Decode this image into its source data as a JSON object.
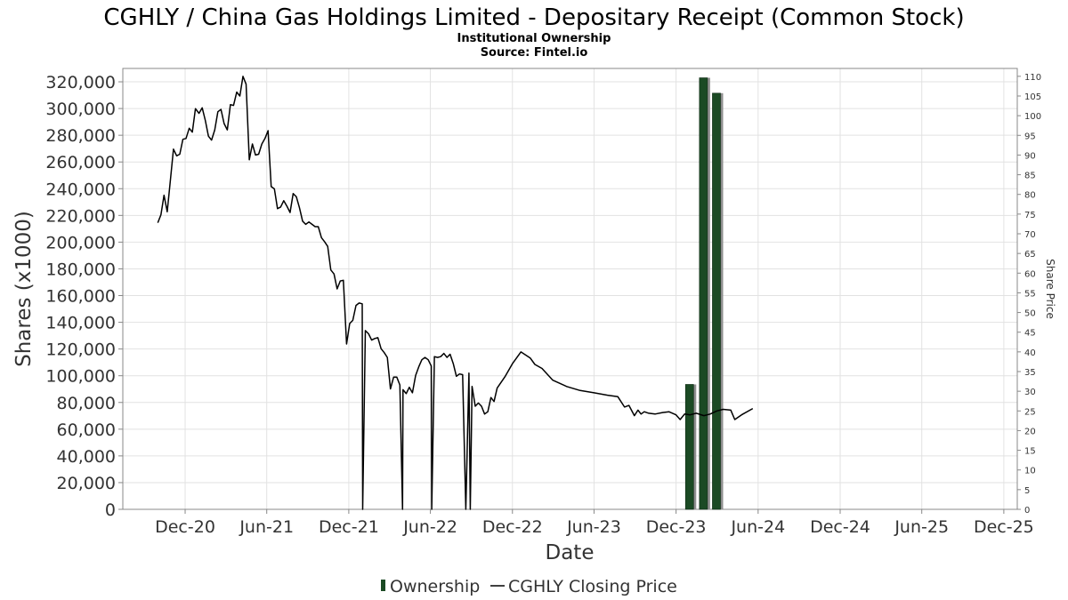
{
  "chart_data": {
    "type": "bar+line",
    "title": "CGHLY / China Gas Holdings Limited - Depositary Receipt (Common Stock)",
    "subtitle_lines": [
      "Institutional Ownership",
      "Source: Fintel.io"
    ],
    "xlabel": "Date",
    "ylabel_left": "Shares (x1000)",
    "ylabel_right": "Share Price",
    "ylim_left": [
      0,
      330000
    ],
    "ylim_right": [
      0,
      112
    ],
    "xlim": [
      "2020-07-15",
      "2025-12-31"
    ],
    "grid": true,
    "x_ticks": [
      {
        "label": "Dec-20",
        "date": "2020-12-01"
      },
      {
        "label": "Jun-21",
        "date": "2021-06-01"
      },
      {
        "label": "Dec-21",
        "date": "2021-12-01"
      },
      {
        "label": "Jun-22",
        "date": "2022-06-01"
      },
      {
        "label": "Dec-22",
        "date": "2022-12-01"
      },
      {
        "label": "Jun-23",
        "date": "2023-06-01"
      },
      {
        "label": "Dec-23",
        "date": "2023-12-01"
      },
      {
        "label": "Jun-24",
        "date": "2024-06-01"
      },
      {
        "label": "Dec-24",
        "date": "2024-12-01"
      },
      {
        "label": "Jun-25",
        "date": "2025-06-01"
      },
      {
        "label": "Dec-25",
        "date": "2025-12-01"
      }
    ],
    "y_ticks_left": [
      {
        "label": "0",
        "value": 0
      },
      {
        "label": "20,000",
        "value": 20000
      },
      {
        "label": "40,000",
        "value": 40000
      },
      {
        "label": "60,000",
        "value": 60000
      },
      {
        "label": "80,000",
        "value": 80000
      },
      {
        "label": "100,000",
        "value": 100000
      },
      {
        "label": "120,000",
        "value": 120000
      },
      {
        "label": "140,000",
        "value": 140000
      },
      {
        "label": "160,000",
        "value": 160000
      },
      {
        "label": "180,000",
        "value": 180000
      },
      {
        "label": "200,000",
        "value": 200000
      },
      {
        "label": "220,000",
        "value": 220000
      },
      {
        "label": "240,000",
        "value": 240000
      },
      {
        "label": "260,000",
        "value": 260000
      },
      {
        "label": "280,000",
        "value": 280000
      },
      {
        "label": "300,000",
        "value": 300000
      },
      {
        "label": "320,000",
        "value": 320000
      }
    ],
    "y_ticks_right": [
      {
        "label": "0",
        "value": 0
      },
      {
        "label": "5",
        "value": 5
      },
      {
        "label": "10",
        "value": 10
      },
      {
        "label": "15",
        "value": 15
      },
      {
        "label": "20",
        "value": 20
      },
      {
        "label": "25",
        "value": 25
      },
      {
        "label": "30",
        "value": 30
      },
      {
        "label": "35",
        "value": 35
      },
      {
        "label": "40",
        "value": 40
      },
      {
        "label": "45",
        "value": 45
      },
      {
        "label": "50",
        "value": 50
      },
      {
        "label": "55",
        "value": 55
      },
      {
        "label": "60",
        "value": 60
      },
      {
        "label": "65",
        "value": 65
      },
      {
        "label": "70",
        "value": 70
      },
      {
        "label": "75",
        "value": 75
      },
      {
        "label": "80",
        "value": 80
      },
      {
        "label": "85",
        "value": 85
      },
      {
        "label": "90",
        "value": 90
      },
      {
        "label": "95",
        "value": 95
      },
      {
        "label": "100",
        "value": 100
      },
      {
        "label": "105",
        "value": 105
      },
      {
        "label": "110",
        "value": 110
      }
    ],
    "legend": {
      "placement": "bottom-center",
      "entries": [
        {
          "name": "Ownership",
          "marker": "bar",
          "color": "#1b4a24"
        },
        {
          "name": "CGHLY Closing Price",
          "marker": "line",
          "color": "#000000"
        }
      ]
    },
    "series": [
      {
        "name": "Ownership",
        "type": "bar",
        "axis": "left",
        "color": "#1b4a24",
        "shadow_color": "#8f8f8f",
        "bar_width_days": 18,
        "points": [
          {
            "date": "2023-12-31",
            "value": 93500
          },
          {
            "date": "2024-01-31",
            "value": 323000
          },
          {
            "date": "2024-02-29",
            "value": 311500
          }
        ]
      },
      {
        "name": "CGHLY Closing Price",
        "type": "line",
        "axis": "right",
        "color": "#000000",
        "points": [
          [
            "2020-10-01",
            72.8
          ],
          [
            "2020-10-08",
            74.8
          ],
          [
            "2020-10-15",
            79.8
          ],
          [
            "2020-10-22",
            75.6
          ],
          [
            "2020-10-29",
            83.5
          ],
          [
            "2020-11-05",
            91.5
          ],
          [
            "2020-11-12",
            89.8
          ],
          [
            "2020-11-19",
            90.2
          ],
          [
            "2020-11-26",
            94.0
          ],
          [
            "2020-12-03",
            94.2
          ],
          [
            "2020-12-10",
            96.8
          ],
          [
            "2020-12-17",
            95.8
          ],
          [
            "2020-12-24",
            101.8
          ],
          [
            "2021-01-01",
            100.6
          ],
          [
            "2021-01-08",
            102.0
          ],
          [
            "2021-01-15",
            98.8
          ],
          [
            "2021-01-22",
            94.8
          ],
          [
            "2021-01-29",
            93.8
          ],
          [
            "2021-02-05",
            96.4
          ],
          [
            "2021-02-12",
            101.0
          ],
          [
            "2021-02-19",
            101.6
          ],
          [
            "2021-02-26",
            98.0
          ],
          [
            "2021-03-05",
            96.4
          ],
          [
            "2021-03-12",
            102.8
          ],
          [
            "2021-03-19",
            102.6
          ],
          [
            "2021-03-26",
            106.0
          ],
          [
            "2021-04-02",
            105.0
          ],
          [
            "2021-04-09",
            110.0
          ],
          [
            "2021-04-16",
            108.0
          ],
          [
            "2021-04-23",
            88.8
          ],
          [
            "2021-04-30",
            92.8
          ],
          [
            "2021-05-07",
            90.0
          ],
          [
            "2021-05-14",
            90.2
          ],
          [
            "2021-05-21",
            92.8
          ],
          [
            "2021-05-28",
            94.2
          ],
          [
            "2021-06-04",
            96.2
          ],
          [
            "2021-06-11",
            82.0
          ],
          [
            "2021-06-18",
            81.4
          ],
          [
            "2021-06-25",
            76.4
          ],
          [
            "2021-07-02",
            76.8
          ],
          [
            "2021-07-09",
            78.4
          ],
          [
            "2021-07-16",
            77.0
          ],
          [
            "2021-07-23",
            75.4
          ],
          [
            "2021-07-30",
            80.2
          ],
          [
            "2021-08-06",
            79.4
          ],
          [
            "2021-08-13",
            76.6
          ],
          [
            "2021-08-20",
            73.2
          ],
          [
            "2021-08-27",
            72.4
          ],
          [
            "2021-09-03",
            73.0
          ],
          [
            "2021-09-10",
            72.4
          ],
          [
            "2021-09-17",
            71.8
          ],
          [
            "2021-09-24",
            71.8
          ],
          [
            "2021-10-01",
            69.0
          ],
          [
            "2021-10-08",
            68.0
          ],
          [
            "2021-10-15",
            66.8
          ],
          [
            "2021-10-22",
            60.8
          ],
          [
            "2021-10-29",
            59.8
          ],
          [
            "2021-11-05",
            56.0
          ],
          [
            "2021-11-12",
            58.0
          ],
          [
            "2021-11-19",
            58.2
          ],
          [
            "2021-11-26",
            42.0
          ],
          [
            "2021-12-03",
            47.2
          ],
          [
            "2021-12-10",
            48.0
          ],
          [
            "2021-12-17",
            51.8
          ],
          [
            "2021-12-24",
            52.4
          ],
          [
            "2021-12-31",
            52.2
          ],
          [
            "2022-01-01",
            0
          ],
          [
            "2022-01-07",
            45.4
          ],
          [
            "2022-01-14",
            44.6
          ],
          [
            "2022-01-21",
            43.0
          ],
          [
            "2022-01-28",
            43.4
          ],
          [
            "2022-02-04",
            43.6
          ],
          [
            "2022-02-11",
            40.8
          ],
          [
            "2022-02-18",
            39.8
          ],
          [
            "2022-02-25",
            38.6
          ],
          [
            "2022-03-04",
            30.6
          ],
          [
            "2022-03-11",
            33.6
          ],
          [
            "2022-03-18",
            33.6
          ],
          [
            "2022-03-25",
            31.6
          ],
          [
            "2022-03-31",
            0
          ],
          [
            "2022-04-01",
            30.4
          ],
          [
            "2022-04-08",
            29.4
          ],
          [
            "2022-04-15",
            31.0
          ],
          [
            "2022-04-22",
            29.6
          ],
          [
            "2022-04-29",
            34.0
          ],
          [
            "2022-05-06",
            36.2
          ],
          [
            "2022-05-13",
            38.0
          ],
          [
            "2022-05-20",
            38.6
          ],
          [
            "2022-05-27",
            38.0
          ],
          [
            "2022-06-03",
            36.4
          ],
          [
            "2022-06-04",
            0
          ],
          [
            "2022-06-10",
            38.8
          ],
          [
            "2022-06-17",
            38.6
          ],
          [
            "2022-06-24",
            38.8
          ],
          [
            "2022-07-01",
            39.6
          ],
          [
            "2022-07-08",
            38.6
          ],
          [
            "2022-07-15",
            39.4
          ],
          [
            "2022-07-22",
            37.0
          ],
          [
            "2022-07-29",
            33.8
          ],
          [
            "2022-08-05",
            34.4
          ],
          [
            "2022-08-12",
            34.2
          ],
          [
            "2022-08-19",
            0
          ],
          [
            "2022-08-26",
            34.6
          ],
          [
            "2022-08-29",
            0
          ],
          [
            "2022-09-02",
            31.2
          ],
          [
            "2022-09-09",
            26.2
          ],
          [
            "2022-09-16",
            27.0
          ],
          [
            "2022-09-23",
            26.2
          ],
          [
            "2022-09-30",
            24.2
          ],
          [
            "2022-10-07",
            24.8
          ],
          [
            "2022-10-14",
            28.4
          ],
          [
            "2022-10-21",
            27.4
          ],
          [
            "2022-10-28",
            30.8
          ],
          [
            "2022-11-15",
            33.8
          ],
          [
            "2022-12-01",
            37.0
          ],
          [
            "2022-12-20",
            40.0
          ],
          [
            "2023-01-10",
            38.4
          ],
          [
            "2023-01-20",
            36.8
          ],
          [
            "2023-02-05",
            35.8
          ],
          [
            "2023-03-01",
            32.8
          ],
          [
            "2023-04-01",
            31.2
          ],
          [
            "2023-05-01",
            30.2
          ],
          [
            "2023-06-01",
            29.6
          ],
          [
            "2023-07-01",
            29.0
          ],
          [
            "2023-07-24",
            28.6
          ],
          [
            "2023-08-08",
            26.0
          ],
          [
            "2023-08-18",
            26.4
          ],
          [
            "2023-08-30",
            23.8
          ],
          [
            "2023-09-07",
            25.2
          ],
          [
            "2023-09-14",
            24.2
          ],
          [
            "2023-09-21",
            24.8
          ],
          [
            "2023-10-01",
            24.4
          ],
          [
            "2023-10-15",
            24.2
          ],
          [
            "2023-11-01",
            24.6
          ],
          [
            "2023-11-15",
            24.8
          ],
          [
            "2023-12-01",
            24.0
          ],
          [
            "2023-12-10",
            22.8
          ],
          [
            "2023-12-20",
            24.2
          ],
          [
            "2024-01-01",
            24.0
          ],
          [
            "2024-01-15",
            24.4
          ],
          [
            "2024-02-01",
            23.8
          ],
          [
            "2024-02-15",
            24.2
          ],
          [
            "2024-03-01",
            25.0
          ],
          [
            "2024-03-15",
            25.4
          ],
          [
            "2024-04-01",
            25.2
          ],
          [
            "2024-04-10",
            22.8
          ],
          [
            "2024-04-25",
            24.0
          ],
          [
            "2024-05-20",
            25.6
          ]
        ]
      }
    ]
  }
}
